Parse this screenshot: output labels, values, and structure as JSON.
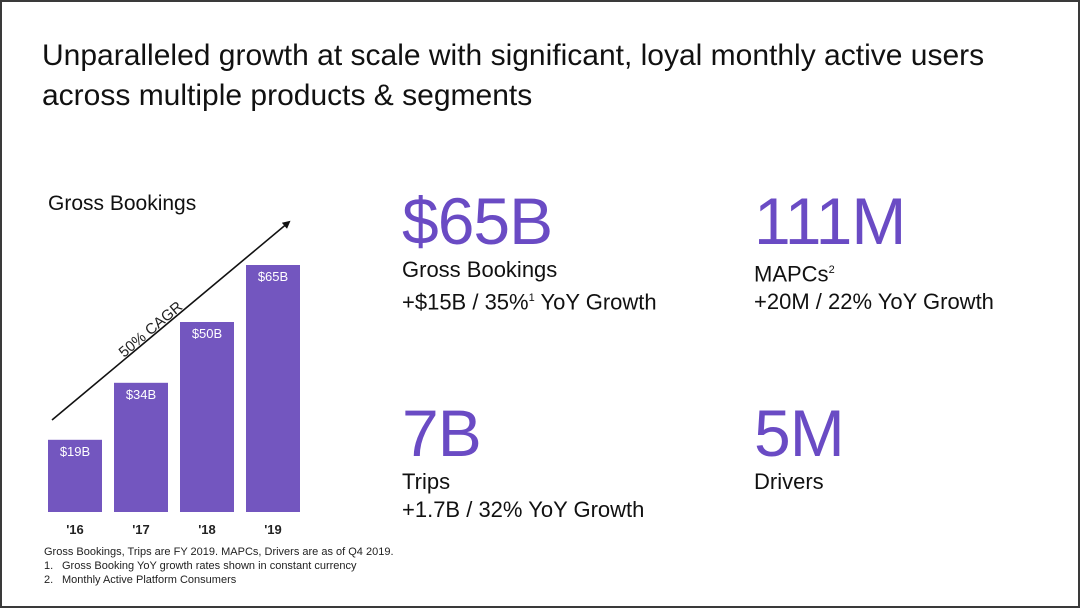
{
  "title": "Unparalleled growth at scale with significant, loyal monthly active users across multiple products & segments",
  "chart_data": {
    "type": "bar",
    "title": "Gross Bookings",
    "categories": [
      "'16",
      "'17",
      "'18",
      "'19"
    ],
    "values": [
      19,
      34,
      50,
      65
    ],
    "data_labels": [
      "$19B",
      "$34B",
      "$50B",
      "$65B"
    ],
    "ylim": [
      0,
      70
    ],
    "xlabel": "",
    "ylabel": "",
    "annotation": "50% CAGR",
    "bar_color": "#7356bf"
  },
  "stats": {
    "gross_bookings": {
      "value": "$65B",
      "label": "Gross Bookings",
      "sub_pre": "+$15B / 35%",
      "sub_sup": "1",
      "sub_post": " YoY Growth"
    },
    "mapcs": {
      "value": "111M",
      "label": "MAPCs",
      "label_sup": "2",
      "sub": "+20M / 22% YoY Growth"
    },
    "trips": {
      "value": "7B",
      "label": "Trips",
      "sub": "+1.7B / 32% YoY Growth"
    },
    "drivers": {
      "value": "5M",
      "label": "Drivers"
    }
  },
  "footnotes": {
    "intro": "Gross Bookings, Trips are FY 2019. MAPCs, Drivers are as of Q4 2019.",
    "items": [
      {
        "num": "1.",
        "text": "Gross Booking YoY growth rates shown in constant currency"
      },
      {
        "num": "2.",
        "text": "Monthly Active Platform Consumers"
      }
    ]
  },
  "colors": {
    "accent": "#6a4bc4",
    "bar": "#7356bf",
    "text": "#111111"
  }
}
